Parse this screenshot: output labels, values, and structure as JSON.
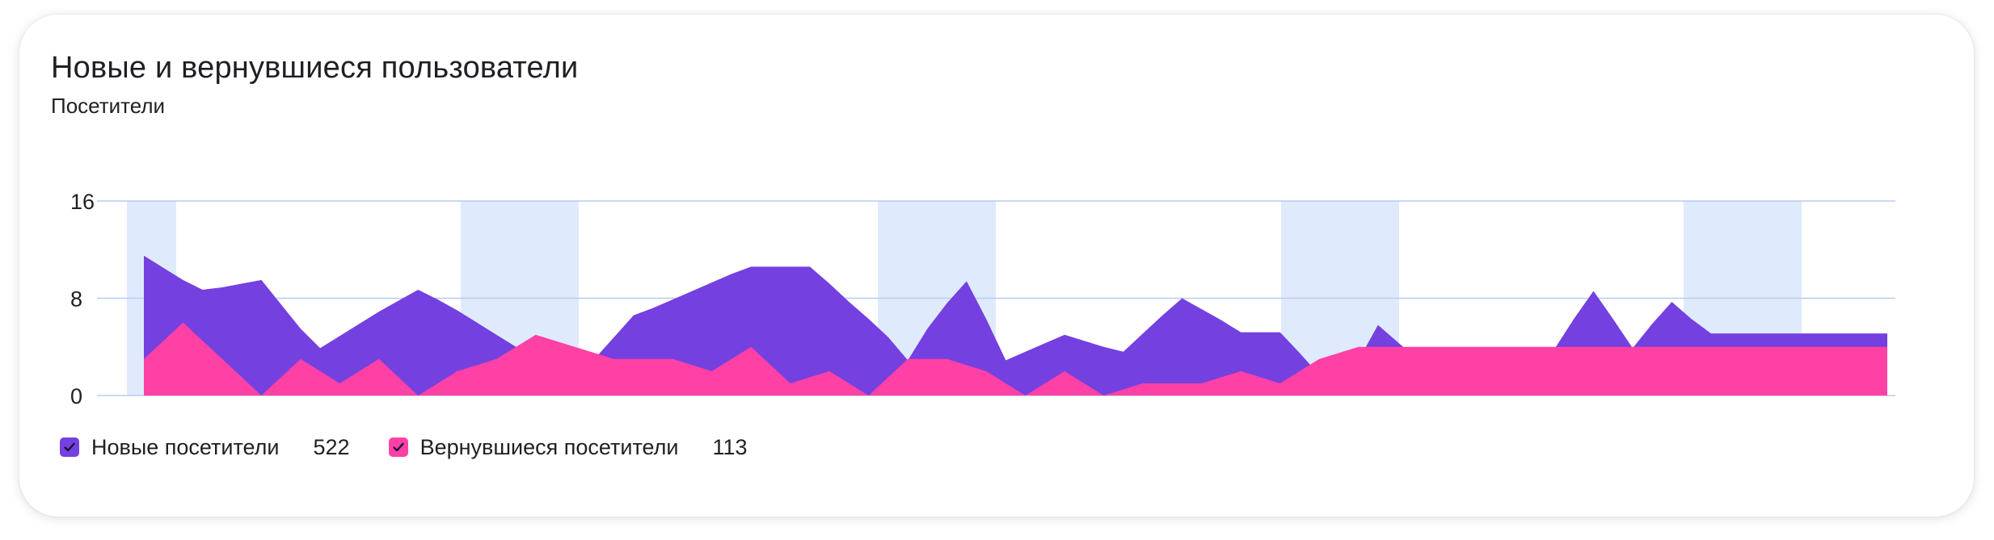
{
  "title": "Новые и вернувшиеся пользователи",
  "subtitle": "Посетители",
  "colors": {
    "new_visitors": "#7440e0",
    "returning_visitors": "#ff41a6",
    "weekend_band": "#dfeafc",
    "gridline": "#b7cdf2"
  },
  "legend": [
    {
      "label": "Новые посетители",
      "count": "522",
      "checked": true,
      "icon": "check-icon"
    },
    {
      "label": "Вернувшиеся посетители",
      "count": "113",
      "checked": true,
      "icon": "check-icon"
    }
  ],
  "chart_data": {
    "type": "area",
    "stacked": false,
    "title": "Новые и вернувшиеся пользователи",
    "ylabel": "Посетители",
    "ylim": [
      0,
      16
    ],
    "yticks": [
      0,
      8,
      16
    ],
    "grid": true,
    "legend_position": "bottom-left",
    "x": [
      1,
      2,
      3,
      4,
      5,
      6,
      7,
      8,
      9,
      10,
      11,
      12,
      13,
      14,
      15,
      16,
      17,
      18,
      19,
      20,
      21,
      22,
      23,
      24,
      25,
      26,
      27,
      28,
      29,
      30,
      31,
      32,
      33,
      34,
      35,
      36,
      37,
      38,
      39,
      40,
      41,
      42,
      43,
      44,
      45,
      46,
      47,
      48,
      49,
      50,
      51,
      52,
      53,
      54,
      55,
      56,
      57,
      58,
      59,
      60,
      61,
      62,
      63,
      64,
      65,
      66,
      67,
      68,
      69,
      70,
      71,
      72,
      73,
      74,
      75,
      76,
      77,
      78,
      79,
      80,
      81,
      82,
      83,
      84,
      85,
      86,
      87,
      88,
      89,
      90
    ],
    "series": [
      {
        "name": "Новые посетители",
        "values": [
          11.5,
          10.5,
          9.5,
          8.7,
          8.9,
          9.2,
          9.5,
          7.5,
          5.5,
          3.9,
          4.9,
          5.9,
          6.9,
          7.8,
          8.7,
          7.9,
          7.0,
          6.0,
          5.0,
          4.0,
          3.0,
          3.0,
          3.0,
          3.0,
          4.8,
          6.6,
          7.2,
          7.9,
          8.6,
          9.3,
          10.0,
          10.6,
          10.6,
          10.6,
          10.6,
          9.2,
          7.7,
          6.3,
          4.8,
          2.9,
          5.5,
          7.6,
          9.4,
          6.3,
          2.9,
          3.6,
          4.3,
          5.0,
          4.5,
          4.0,
          3.6,
          5.1,
          6.6,
          8.0,
          7.1,
          6.2,
          5.2,
          5.2,
          5.2,
          3.5,
          1.7,
          0.0,
          2.9,
          5.8,
          4.4,
          3.0,
          2.0,
          2.0,
          2.0,
          2.0,
          2.0,
          2.9,
          3.8,
          6.3,
          8.6,
          6.3,
          3.9,
          5.9,
          7.7,
          6.3,
          5.1,
          5.1,
          5.1,
          5.1,
          5.1,
          5.1,
          5.1,
          5.1,
          5.1,
          5.1
        ],
        "note": "series truncated naturally at last visible point"
      },
      {
        "name": "Вернувшиеся посетители",
        "values": [
          3.0,
          4.5,
          6.0,
          4.5,
          3.0,
          1.5,
          0.0,
          1.5,
          3.0,
          2.0,
          1.0,
          2.0,
          3.0,
          1.5,
          0.0,
          1.0,
          2.0,
          2.5,
          3.0,
          4.0,
          5.0,
          4.5,
          4.0,
          3.5,
          3.0,
          3.0,
          3.0,
          3.0,
          2.5,
          2.0,
          3.0,
          4.0,
          2.5,
          1.0,
          1.5,
          2.0,
          1.0,
          0.0,
          1.5,
          3.0,
          3.0,
          3.0,
          2.5,
          2.0,
          1.0,
          0.0,
          1.0,
          2.0,
          1.0,
          0.0,
          0.5,
          1.0,
          1.0,
          1.0,
          1.0,
          1.5,
          2.0,
          1.5,
          1.0,
          2.0,
          3.0,
          3.5,
          4.0,
          4.0,
          4.0,
          4.0,
          4.0,
          4.0,
          4.0,
          4.0,
          4.0,
          4.0,
          4.0,
          4.0,
          4.0,
          4.0,
          4.0,
          4.0,
          4.0,
          4.0,
          4.0,
          4.0,
          4.0,
          4.0,
          4.0,
          4.0,
          4.0,
          4.0,
          4.0,
          4.0
        ]
      }
    ]
  }
}
